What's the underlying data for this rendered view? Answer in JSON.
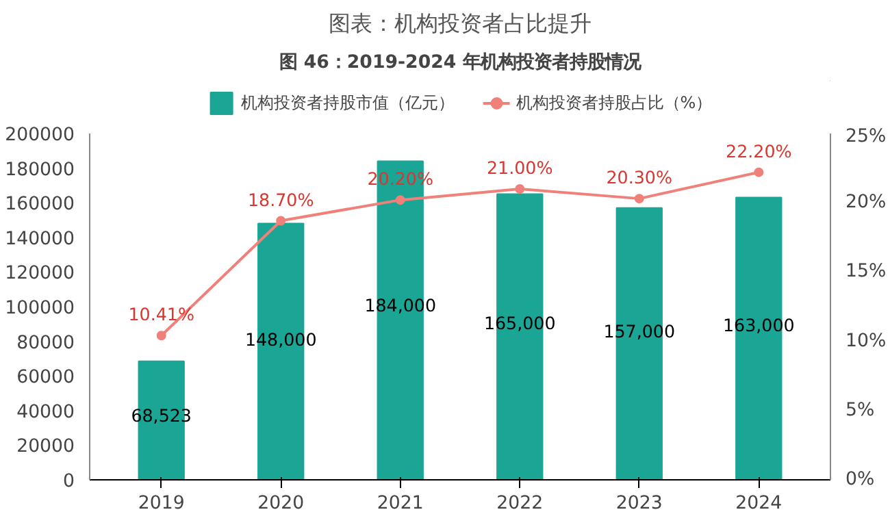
{
  "chart_data": {
    "type": "bar",
    "title": "图表：机构投资者占比提升",
    "subtitle": "图 46：2019-2024 年机构投资者持股情况",
    "categories": [
      "2019",
      "2020",
      "2021",
      "2022",
      "2023",
      "2024"
    ],
    "series": [
      {
        "name": "机构投资者持股市值（亿元）",
        "color": "#1aa595",
        "values": [
          68523,
          148000,
          184000,
          165000,
          157000,
          163000
        ],
        "value_labels": [
          "68,523",
          "148,000",
          "184,000",
          "165,000",
          "157,000",
          "163,000"
        ]
      },
      {
        "name": "机构投资者持股占比（%）",
        "type": "line",
        "axis": "y2",
        "color": "#f0807a",
        "marker": "circle",
        "values": [
          10.41,
          18.7,
          20.2,
          21.0,
          20.3,
          22.2
        ],
        "value_labels": [
          "10.41%",
          "18.70%",
          "20.20%",
          "21.00%",
          "20.30%",
          "22.20%"
        ]
      }
    ],
    "ylim": [
      0,
      200000
    ],
    "yticks": [
      0,
      20000,
      40000,
      60000,
      80000,
      100000,
      120000,
      140000,
      160000,
      180000,
      200000
    ],
    "y2lim": [
      0,
      25
    ],
    "y2ticks": [
      {
        "value": 0,
        "label": "0%"
      },
      {
        "value": 5,
        "label": "5%"
      },
      {
        "value": 10,
        "label": "10%"
      },
      {
        "value": 15,
        "label": "15%"
      },
      {
        "value": 20,
        "label": "20%"
      },
      {
        "value": 25,
        "label": "25%"
      }
    ],
    "grid": false,
    "legend": "top"
  }
}
